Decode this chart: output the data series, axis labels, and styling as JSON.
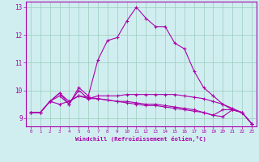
{
  "title": "",
  "xlabel": "Windchill (Refroidissement éolien,°C)",
  "background_color": "#d0eef0",
  "grid_color": "#99ccbb",
  "line_color": "#aa00aa",
  "x_hours": [
    0,
    1,
    2,
    3,
    4,
    5,
    6,
    7,
    8,
    9,
    10,
    11,
    12,
    13,
    14,
    15,
    16,
    17,
    18,
    19,
    20,
    21,
    22,
    23
  ],
  "series1": [
    9.2,
    9.2,
    9.6,
    9.9,
    9.5,
    10.1,
    9.8,
    11.1,
    11.8,
    11.9,
    12.5,
    13.0,
    12.6,
    12.3,
    12.3,
    11.7,
    11.5,
    10.7,
    10.1,
    9.8,
    9.5,
    9.3,
    9.2,
    8.8
  ],
  "series2": [
    9.2,
    9.2,
    9.6,
    9.9,
    9.6,
    9.8,
    9.7,
    9.8,
    9.8,
    9.8,
    9.85,
    9.85,
    9.85,
    9.85,
    9.85,
    9.85,
    9.8,
    9.75,
    9.7,
    9.6,
    9.5,
    9.35,
    9.2,
    8.8
  ],
  "series3": [
    9.2,
    9.2,
    9.6,
    9.8,
    9.5,
    10.0,
    9.7,
    9.7,
    9.65,
    9.6,
    9.6,
    9.55,
    9.5,
    9.5,
    9.45,
    9.4,
    9.35,
    9.3,
    9.2,
    9.1,
    9.05,
    9.3,
    9.2,
    8.8
  ],
  "series4": [
    9.2,
    9.2,
    9.6,
    9.5,
    9.6,
    9.8,
    9.75,
    9.7,
    9.65,
    9.6,
    9.55,
    9.5,
    9.45,
    9.45,
    9.4,
    9.35,
    9.3,
    9.25,
    9.2,
    9.1,
    9.3,
    9.3,
    9.2,
    8.8
  ],
  "ylim": [
    8.7,
    13.2
  ],
  "xlim": [
    -0.5,
    23.5
  ],
  "yticks": [
    9,
    10,
    11,
    12,
    13
  ]
}
